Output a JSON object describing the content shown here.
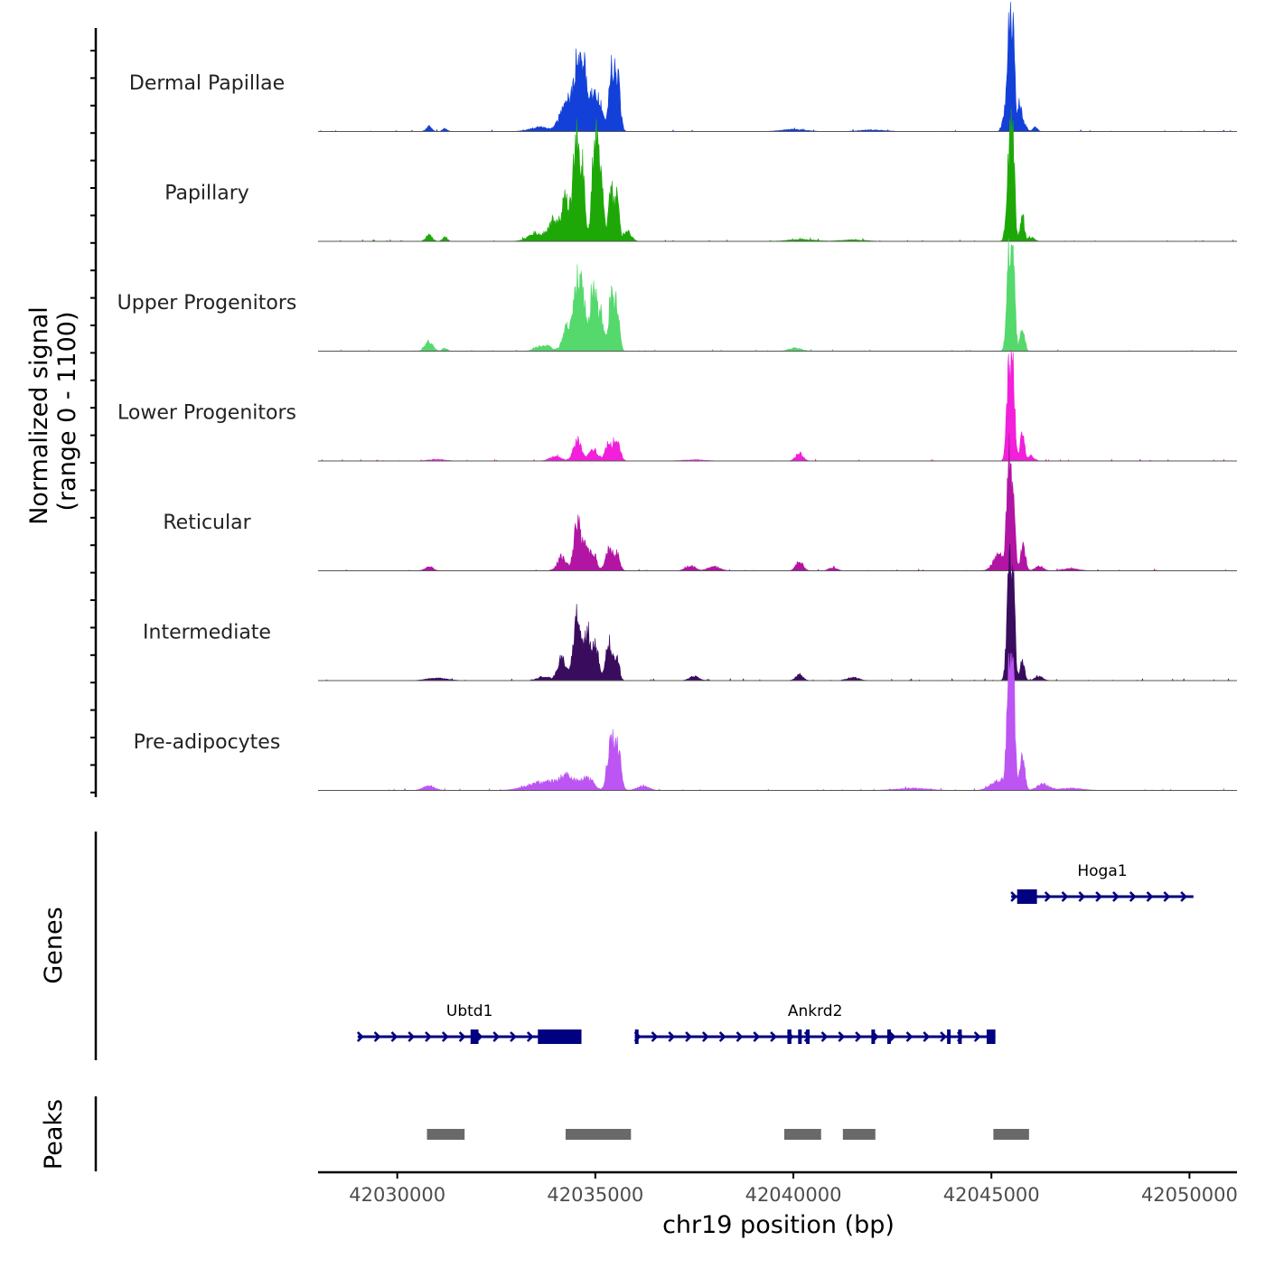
{
  "chart_data": {
    "type": "area",
    "title": "",
    "chromosome": "chr19",
    "xlabel": "chr19 position (bp)",
    "xlim": [
      42028000,
      42051200
    ],
    "xticks": [
      42030000,
      42035000,
      42040000,
      42045000,
      42050000
    ],
    "xtick_labels": [
      "42030000",
      "42035000",
      "42040000",
      "42045000",
      "42050000"
    ],
    "ylabel_line1": "Normalized signal",
    "ylabel_line2": "(range 0 - 1100)",
    "ylim": [
      0,
      1100
    ],
    "coverage": {
      "series": [
        {
          "name": "Dermal Papillae",
          "color": "#1240D8",
          "peaks": [
            [
              42030800,
              50,
              70
            ],
            [
              42031200,
              30,
              60
            ],
            [
              42034150,
              150,
              110
            ],
            [
              42034350,
              280,
              100
            ],
            [
              42034550,
              650,
              90
            ],
            [
              42034700,
              520,
              70
            ],
            [
              42034950,
              380,
              120
            ],
            [
              42035150,
              150,
              90
            ],
            [
              42035400,
              600,
              60
            ],
            [
              42035550,
              560,
              70
            ],
            [
              42033600,
              40,
              250
            ],
            [
              42045450,
              1000,
              60
            ],
            [
              42045550,
              700,
              45
            ],
            [
              42045700,
              240,
              55
            ],
            [
              42045800,
              100,
              70
            ],
            [
              42045300,
              80,
              50
            ],
            [
              42046100,
              40,
              60
            ],
            [
              42040000,
              20,
              300
            ],
            [
              42042000,
              15,
              300
            ]
          ]
        },
        {
          "name": "Papillary",
          "color": "#1EA808",
          "peaks": [
            [
              42030800,
              60,
              80
            ],
            [
              42031200,
              40,
              60
            ],
            [
              42033500,
              80,
              200
            ],
            [
              42033950,
              200,
              120
            ],
            [
              42034250,
              400,
              100
            ],
            [
              42034520,
              980,
              80
            ],
            [
              42034680,
              620,
              60
            ],
            [
              42035000,
              1000,
              80
            ],
            [
              42035150,
              480,
              70
            ],
            [
              42035400,
              520,
              60
            ],
            [
              42035550,
              420,
              50
            ],
            [
              42035800,
              100,
              100
            ],
            [
              42045470,
              930,
              70
            ],
            [
              42045550,
              600,
              45
            ],
            [
              42045780,
              260,
              50
            ],
            [
              42046000,
              40,
              80
            ],
            [
              42040200,
              20,
              300
            ],
            [
              42041500,
              15,
              300
            ]
          ]
        },
        {
          "name": "Upper Progenitors",
          "color": "#55D86C",
          "peaks": [
            [
              42030800,
              90,
              100
            ],
            [
              42031200,
              30,
              60
            ],
            [
              42033700,
              60,
              180
            ],
            [
              42034300,
              250,
              110
            ],
            [
              42034550,
              700,
              80
            ],
            [
              42034700,
              420,
              60
            ],
            [
              42034950,
              600,
              100
            ],
            [
              42035150,
              280,
              70
            ],
            [
              42035400,
              520,
              70
            ],
            [
              42035550,
              400,
              60
            ],
            [
              42045450,
              920,
              60
            ],
            [
              42045560,
              700,
              45
            ],
            [
              42045780,
              240,
              55
            ],
            [
              42040050,
              30,
              150
            ]
          ]
        },
        {
          "name": "Lower Progenitors",
          "color": "#F21FDB",
          "peaks": [
            [
              42034000,
              40,
              150
            ],
            [
              42034550,
              200,
              100
            ],
            [
              42034950,
              120,
              100
            ],
            [
              42035350,
              180,
              100
            ],
            [
              42035550,
              170,
              80
            ],
            [
              42040150,
              80,
              90
            ],
            [
              42045450,
              900,
              60
            ],
            [
              42045560,
              650,
              45
            ],
            [
              42045780,
              250,
              55
            ],
            [
              42046000,
              50,
              80
            ],
            [
              42031000,
              15,
              200
            ],
            [
              42037500,
              10,
              300
            ]
          ]
        },
        {
          "name": "Reticular",
          "color": "#B214A3",
          "peaks": [
            [
              42030800,
              40,
              100
            ],
            [
              42034150,
              130,
              110
            ],
            [
              42034550,
              460,
              90
            ],
            [
              42034750,
              220,
              80
            ],
            [
              42034950,
              170,
              80
            ],
            [
              42035350,
              220,
              90
            ],
            [
              42035550,
              150,
              70
            ],
            [
              42037400,
              50,
              120
            ],
            [
              42038000,
              40,
              150
            ],
            [
              42040150,
              90,
              90
            ],
            [
              42041000,
              30,
              100
            ],
            [
              42045200,
              150,
              150
            ],
            [
              42045450,
              1020,
              60
            ],
            [
              42045560,
              700,
              45
            ],
            [
              42045800,
              250,
              60
            ],
            [
              42046200,
              50,
              100
            ],
            [
              42047000,
              20,
              200
            ]
          ]
        },
        {
          "name": "Intermediate",
          "color": "#3A0C5E",
          "peaks": [
            [
              42031000,
              25,
              250
            ],
            [
              42033700,
              40,
              150
            ],
            [
              42034150,
              220,
              100
            ],
            [
              42034550,
              700,
              100
            ],
            [
              42034800,
              450,
              70
            ],
            [
              42035000,
              330,
              90
            ],
            [
              42035350,
              380,
              80
            ],
            [
              42035550,
              200,
              60
            ],
            [
              42037500,
              40,
              120
            ],
            [
              42040150,
              60,
              90
            ],
            [
              42041500,
              30,
              150
            ],
            [
              42045450,
              1030,
              60
            ],
            [
              42045560,
              720,
              45
            ],
            [
              42045780,
              200,
              55
            ],
            [
              42046200,
              40,
              100
            ]
          ]
        },
        {
          "name": "Pre-adipocytes",
          "color": "#BC55F2",
          "peaks": [
            [
              42030800,
              40,
              150
            ],
            [
              42033700,
              80,
              400
            ],
            [
              42034300,
              120,
              200
            ],
            [
              42034800,
              120,
              150
            ],
            [
              42035380,
              460,
              80
            ],
            [
              42035560,
              420,
              80
            ],
            [
              42036200,
              40,
              150
            ],
            [
              42045450,
              1300,
              55
            ],
            [
              42045560,
              900,
              45
            ],
            [
              42045780,
              350,
              60
            ],
            [
              42045200,
              100,
              200
            ],
            [
              42046300,
              60,
              150
            ],
            [
              42043000,
              20,
              400
            ],
            [
              42047000,
              20,
              300
            ]
          ]
        }
      ]
    },
    "genes": {
      "label": "Genes",
      "color": "#000080",
      "items": [
        {
          "name": "Ubtd1",
          "start": 42029000,
          "end": 42034650,
          "row": 1,
          "exons": [
            [
              42031850,
              42032050
            ],
            [
              42033550,
              42034650
            ]
          ]
        },
        {
          "name": "Ankrd2",
          "start": 42036000,
          "end": 42045100,
          "row": 1,
          "exons": [
            [
              42036000,
              42036080
            ],
            [
              42039850,
              42039950
            ],
            [
              42040120,
              42040200
            ],
            [
              42040320,
              42040380
            ],
            [
              42041970,
              42042050
            ],
            [
              42042370,
              42042440
            ],
            [
              42043880,
              42043960
            ],
            [
              42044160,
              42044220
            ],
            [
              42044880,
              42045100
            ]
          ]
        },
        {
          "name": "Hoga1",
          "start": 42045500,
          "end": 42050100,
          "row": 0,
          "exons": [
            [
              42045650,
              42046150
            ]
          ]
        }
      ]
    },
    "peaks": {
      "label": "Peaks",
      "color": "#696969",
      "regions": [
        [
          42030750,
          42031700
        ],
        [
          42034250,
          42035900
        ],
        [
          42039770,
          42040700
        ],
        [
          42041250,
          42042070
        ],
        [
          42045050,
          42045950
        ]
      ]
    }
  }
}
